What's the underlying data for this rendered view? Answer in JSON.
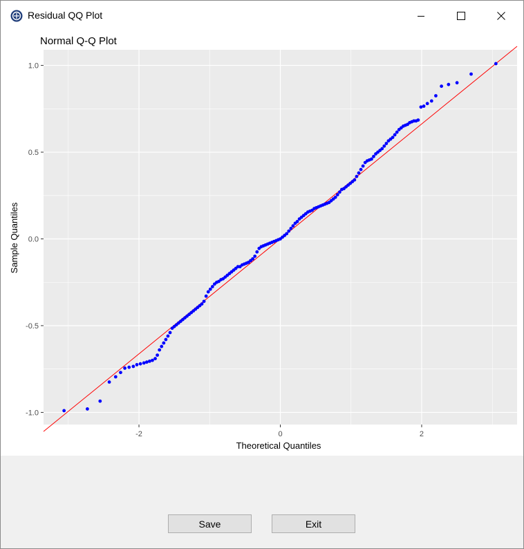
{
  "window": {
    "title": "Residual QQ Plot"
  },
  "buttons": {
    "save_label": "Save",
    "exit_label": "Exit"
  },
  "colors": {
    "points": "#0000ff",
    "line": "#ff0000",
    "panel": "#ebebeb",
    "grid": "#ffffff"
  },
  "chart_data": {
    "type": "scatter",
    "title": "Normal Q-Q Plot",
    "xlabel": "Theoretical Quantiles",
    "ylabel": "Sample Quantiles",
    "xlim": [
      -3.35,
      3.35
    ],
    "ylim": [
      -1.07,
      1.09
    ],
    "x_ticks": [
      -2,
      0,
      2
    ],
    "x_tick_labels": [
      "-2",
      "0",
      "2"
    ],
    "y_ticks": [
      -1.0,
      -0.5,
      0.0,
      0.5,
      1.0
    ],
    "y_tick_labels": [
      "-1.0",
      "-0.5",
      "0.0",
      "0.5",
      "1.0"
    ],
    "grid": true,
    "reference_line": {
      "slope": 0.3313,
      "intercept": 0.0
    },
    "series": [
      {
        "x": [
          -3.06,
          -2.73,
          -2.55,
          -2.42,
          -2.33,
          -2.26,
          -2.2,
          -2.14,
          -2.08,
          -2.03,
          -1.98,
          -1.93,
          -1.89,
          -1.85,
          -1.81,
          -1.77,
          -1.74,
          -1.71,
          -1.68,
          -1.65,
          -1.62,
          -1.59,
          -1.56,
          -1.53,
          -1.5,
          -1.47,
          -1.44,
          -1.41,
          -1.38,
          -1.35,
          -1.32,
          -1.29,
          -1.26,
          -1.23,
          -1.2,
          -1.17,
          -1.14,
          -1.11,
          -1.08,
          -1.05,
          -1.02,
          -0.99,
          -0.96,
          -0.93,
          -0.9,
          -0.87,
          -0.84,
          -0.81,
          -0.78,
          -0.75,
          -0.72,
          -0.69,
          -0.66,
          -0.63,
          -0.6,
          -0.57,
          -0.54,
          -0.51,
          -0.48,
          -0.45,
          -0.42,
          -0.39,
          -0.36,
          -0.33,
          -0.3,
          -0.27,
          -0.24,
          -0.21,
          -0.18,
          -0.15,
          -0.12,
          -0.09,
          -0.06,
          -0.03,
          0.0,
          0.03,
          0.06,
          0.09,
          0.12,
          0.15,
          0.18,
          0.21,
          0.24,
          0.27,
          0.3,
          0.33,
          0.36,
          0.39,
          0.42,
          0.45,
          0.48,
          0.51,
          0.54,
          0.57,
          0.6,
          0.63,
          0.66,
          0.69,
          0.72,
          0.75,
          0.78,
          0.81,
          0.84,
          0.87,
          0.9,
          0.93,
          0.96,
          0.99,
          1.02,
          1.05,
          1.08,
          1.11,
          1.14,
          1.17,
          1.2,
          1.23,
          1.26,
          1.29,
          1.32,
          1.35,
          1.38,
          1.41,
          1.44,
          1.47,
          1.5,
          1.53,
          1.56,
          1.59,
          1.62,
          1.65,
          1.68,
          1.71,
          1.74,
          1.77,
          1.8,
          1.83,
          1.86,
          1.89,
          1.92,
          1.95,
          1.99,
          2.03,
          2.08,
          2.14,
          2.2,
          2.28,
          2.38,
          2.5,
          2.7,
          3.05
        ],
        "y": [
          -0.99,
          -0.98,
          -0.935,
          -0.825,
          -0.795,
          -0.77,
          -0.745,
          -0.74,
          -0.735,
          -0.725,
          -0.72,
          -0.715,
          -0.71,
          -0.705,
          -0.7,
          -0.69,
          -0.67,
          -0.64,
          -0.62,
          -0.6,
          -0.58,
          -0.56,
          -0.54,
          -0.515,
          -0.505,
          -0.495,
          -0.485,
          -0.475,
          -0.465,
          -0.455,
          -0.445,
          -0.435,
          -0.425,
          -0.415,
          -0.405,
          -0.395,
          -0.385,
          -0.375,
          -0.36,
          -0.33,
          -0.305,
          -0.29,
          -0.275,
          -0.26,
          -0.25,
          -0.245,
          -0.235,
          -0.23,
          -0.22,
          -0.21,
          -0.2,
          -0.19,
          -0.18,
          -0.17,
          -0.16,
          -0.16,
          -0.15,
          -0.145,
          -0.14,
          -0.135,
          -0.125,
          -0.115,
          -0.1,
          -0.075,
          -0.055,
          -0.045,
          -0.04,
          -0.035,
          -0.03,
          -0.025,
          -0.02,
          -0.015,
          -0.01,
          -0.005,
          0.0,
          0.01,
          0.02,
          0.03,
          0.045,
          0.06,
          0.075,
          0.09,
          0.1,
          0.115,
          0.125,
          0.135,
          0.145,
          0.155,
          0.16,
          0.165,
          0.175,
          0.18,
          0.185,
          0.19,
          0.195,
          0.2,
          0.205,
          0.21,
          0.22,
          0.23,
          0.24,
          0.255,
          0.27,
          0.285,
          0.29,
          0.3,
          0.31,
          0.32,
          0.33,
          0.34,
          0.36,
          0.38,
          0.4,
          0.42,
          0.44,
          0.45,
          0.455,
          0.46,
          0.475,
          0.49,
          0.5,
          0.51,
          0.52,
          0.535,
          0.55,
          0.565,
          0.575,
          0.585,
          0.6,
          0.615,
          0.63,
          0.64,
          0.65,
          0.655,
          0.66,
          0.67,
          0.675,
          0.68,
          0.68,
          0.685,
          0.76,
          0.765,
          0.78,
          0.795,
          0.825,
          0.88,
          0.89,
          0.9,
          0.95,
          1.01
        ]
      }
    ]
  }
}
